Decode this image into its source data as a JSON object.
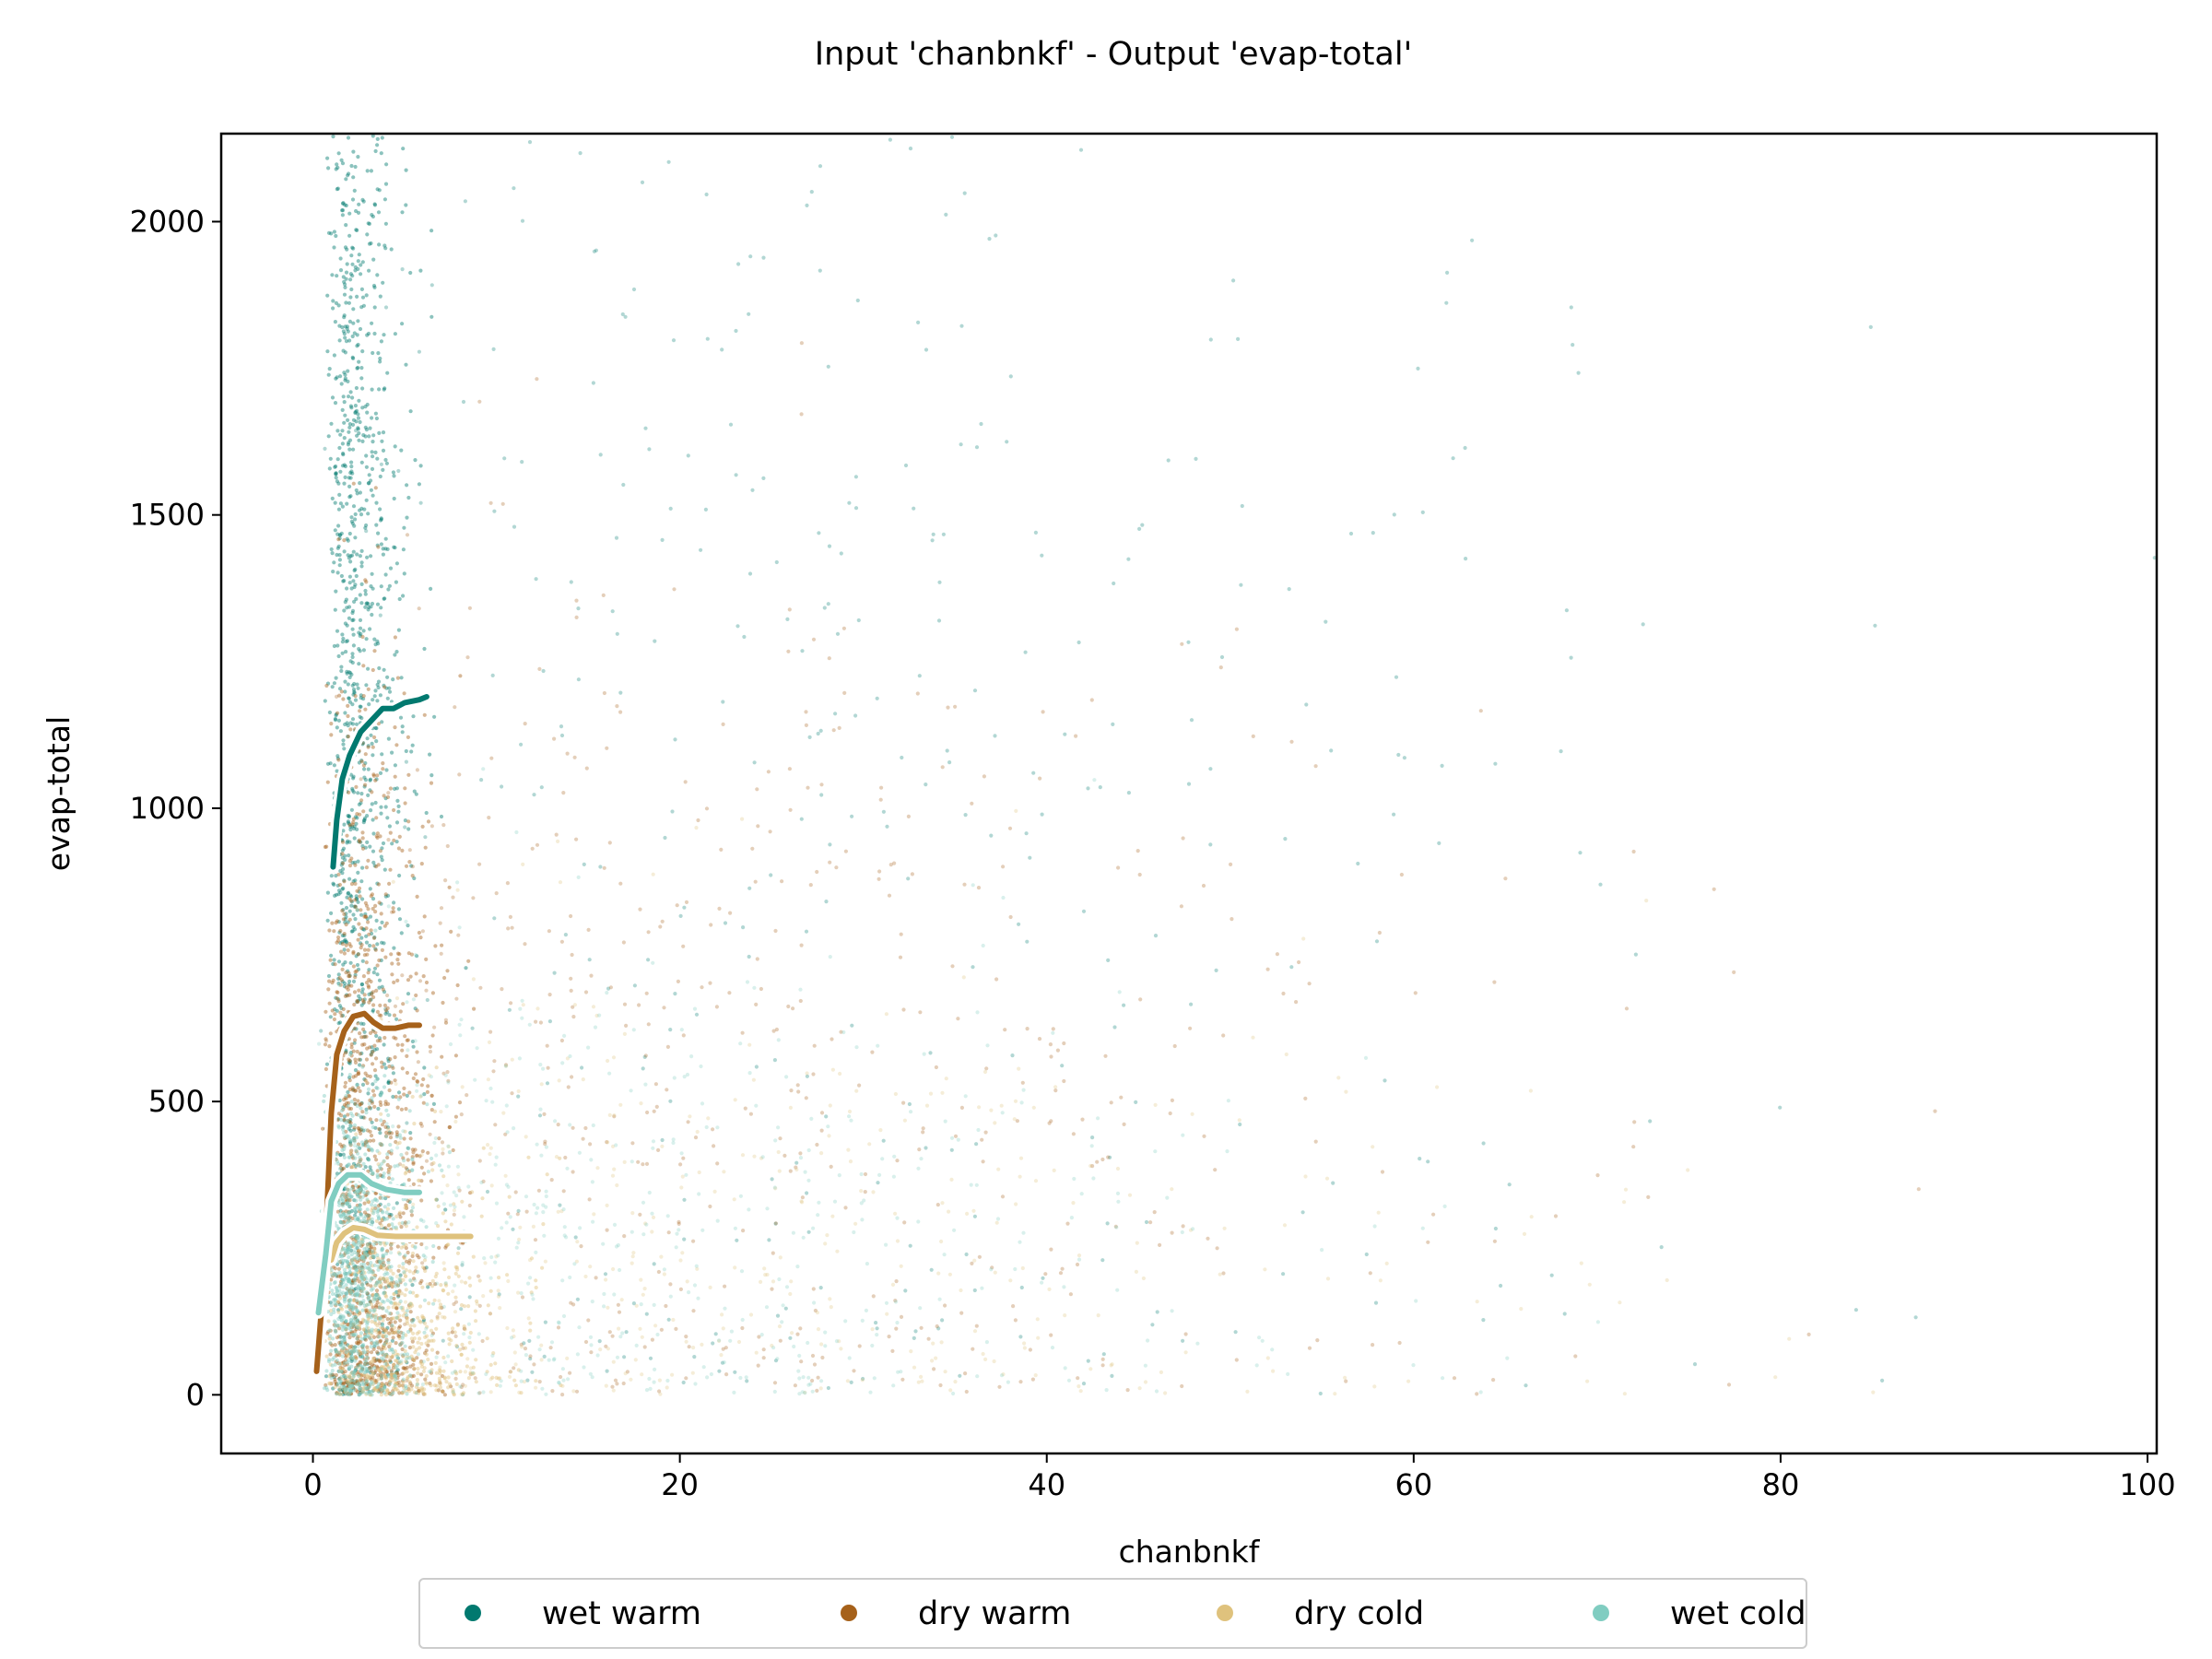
{
  "chart_data": {
    "type": "scatter",
    "title": "Input 'chanbnkf' - Output 'evap-total'",
    "xlabel": "chanbnkf",
    "ylabel": "evap-total",
    "xlim": [
      -5,
      100.5
    ],
    "ylim": [
      -100,
      2150
    ],
    "xticks": [
      0,
      20,
      40,
      60,
      80,
      100
    ],
    "yticks": [
      0,
      500,
      1000,
      1500,
      2000
    ],
    "grid": false,
    "legend_position": "bottom-center",
    "series": [
      {
        "name": "wet warm",
        "color": "#01796f",
        "scatter_center": {
          "x": 2.5,
          "y": 1250
        },
        "trend": {
          "x": [
            1.1,
            1.3,
            1.6,
            2.0,
            2.6,
            3.2,
            3.8,
            4.4,
            5.0,
            5.8,
            6.2
          ],
          "y": [
            900,
            980,
            1050,
            1090,
            1130,
            1150,
            1170,
            1170,
            1180,
            1185,
            1190
          ]
        }
      },
      {
        "name": "dry warm",
        "color": "#a6611a",
        "scatter_center": {
          "x": 3.0,
          "y": 750
        },
        "trend": {
          "x": [
            0.2,
            0.6,
            1.0,
            1.3,
            1.7,
            2.2,
            2.8,
            3.3,
            3.8,
            4.5,
            5.2,
            5.8
          ],
          "y": [
            40,
            200,
            480,
            580,
            620,
            645,
            650,
            635,
            625,
            625,
            630,
            630
          ]
        }
      },
      {
        "name": "dry cold",
        "color": "#dfc27d",
        "scatter_center": {
          "x": 4.0,
          "y": 200
        },
        "trend": {
          "x": [
            1.0,
            1.3,
            1.7,
            2.2,
            2.8,
            3.5,
            4.5,
            6.0,
            7.5,
            8.6
          ],
          "y": [
            230,
            260,
            275,
            285,
            282,
            272,
            270,
            270,
            270,
            270
          ]
        }
      },
      {
        "name": "wet cold",
        "color": "#80cdc1",
        "scatter_center": {
          "x": 3.0,
          "y": 300
        },
        "trend": {
          "x": [
            0.3,
            0.7,
            1.0,
            1.4,
            1.9,
            2.6,
            3.2,
            4.0,
            5.0,
            5.8
          ],
          "y": [
            140,
            240,
            330,
            360,
            375,
            375,
            360,
            350,
            345,
            345
          ]
        }
      }
    ]
  }
}
